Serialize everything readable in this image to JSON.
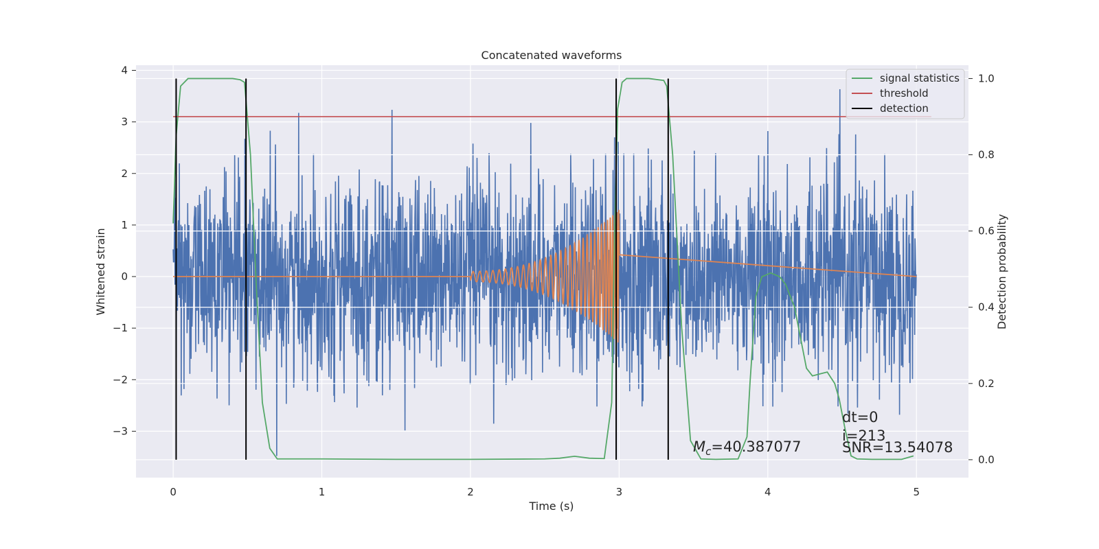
{
  "chart_data": {
    "type": "line",
    "title": "Concatenated waveforms",
    "xlabel": "Time (s)",
    "ylabel_left": "Whitened strain",
    "ylabel_right": "Detection probability",
    "xlim": [
      -0.25,
      5.35
    ],
    "ylim_left": [
      -3.9,
      4.1
    ],
    "ylim_right": [
      -0.047,
      1.035
    ],
    "x_ticks": [
      0,
      1,
      2,
      3,
      4,
      5
    ],
    "x_tick_labels": [
      "0",
      "1",
      "2",
      "3",
      "4",
      "5"
    ],
    "y_left_ticks": [
      -3,
      -2,
      -1,
      0,
      1,
      2,
      3,
      4
    ],
    "y_left_tick_labels": [
      "−3",
      "−2",
      "−1",
      "0",
      "1",
      "2",
      "3",
      "4"
    ],
    "y_right_ticks": [
      0.0,
      0.2,
      0.4,
      0.6,
      0.8,
      1.0
    ],
    "y_right_tick_labels": [
      "0.0",
      "0.2",
      "0.4",
      "0.6",
      "0.8",
      "1.0"
    ],
    "grid": true,
    "legend_position": "top-right",
    "noise": {
      "axis": "left",
      "x_range": [
        0,
        5
      ],
      "color": "#4c72b0",
      "amplitude_range": [
        -3.6,
        3.7
      ]
    },
    "chirp": {
      "axis": "left",
      "x_start": 2.0,
      "x_end": 3.0,
      "amplitude_start": 0.1,
      "amplitude_end": 1.3,
      "color": "#dd8452"
    },
    "series": [
      {
        "name": "signal statistics",
        "axis": "right",
        "color": "#55a868",
        "x": [
          0.0,
          0.02,
          0.05,
          0.1,
          0.2,
          0.3,
          0.4,
          0.45,
          0.48,
          0.52,
          0.56,
          0.6,
          0.65,
          0.7,
          1.0,
          1.5,
          2.0,
          2.5,
          2.6,
          2.7,
          2.8,
          2.9,
          2.95,
          2.97,
          2.99,
          3.02,
          3.05,
          3.1,
          3.2,
          3.3,
          3.32,
          3.36,
          3.42,
          3.48,
          3.55,
          3.65,
          3.8,
          3.86,
          3.88,
          3.92,
          3.96,
          4.02,
          4.08,
          4.12,
          4.18,
          4.22,
          4.26,
          4.3,
          4.35,
          4.4,
          4.45,
          4.48,
          4.52,
          4.56,
          4.6,
          4.7,
          4.9,
          4.98
        ],
        "y": [
          0.62,
          0.85,
          0.98,
          1.0,
          1.0,
          1.0,
          1.0,
          0.997,
          0.99,
          0.8,
          0.45,
          0.15,
          0.03,
          0.002,
          0.002,
          0.001,
          0.001,
          0.002,
          0.004,
          0.009,
          0.004,
          0.003,
          0.15,
          0.6,
          0.92,
          0.99,
          1.0,
          1.0,
          1.0,
          0.995,
          0.98,
          0.8,
          0.35,
          0.05,
          0.002,
          0.001,
          0.002,
          0.06,
          0.2,
          0.43,
          0.48,
          0.49,
          0.48,
          0.46,
          0.4,
          0.32,
          0.24,
          0.22,
          0.225,
          0.23,
          0.2,
          0.16,
          0.08,
          0.01,
          0.002,
          0.001,
          0.001,
          0.01
        ]
      },
      {
        "name": "threshold",
        "axis": "right",
        "color": "#c44e52",
        "x": [
          0.0,
          5.1
        ],
        "y": [
          0.9,
          0.9
        ]
      },
      {
        "name": "detection",
        "axis": "right",
        "color": "#000000",
        "x": [
          0.02,
          0.49,
          2.98,
          3.33
        ],
        "y_bottom": 0.0,
        "y_top": 1.0
      }
    ],
    "annotations": {
      "mc": "=40.387077",
      "dt": "dt=0",
      "i": "i=213",
      "snr": "SNR=13.54078"
    }
  },
  "mc_symbol": {
    "main": "M",
    "sub": "c"
  }
}
